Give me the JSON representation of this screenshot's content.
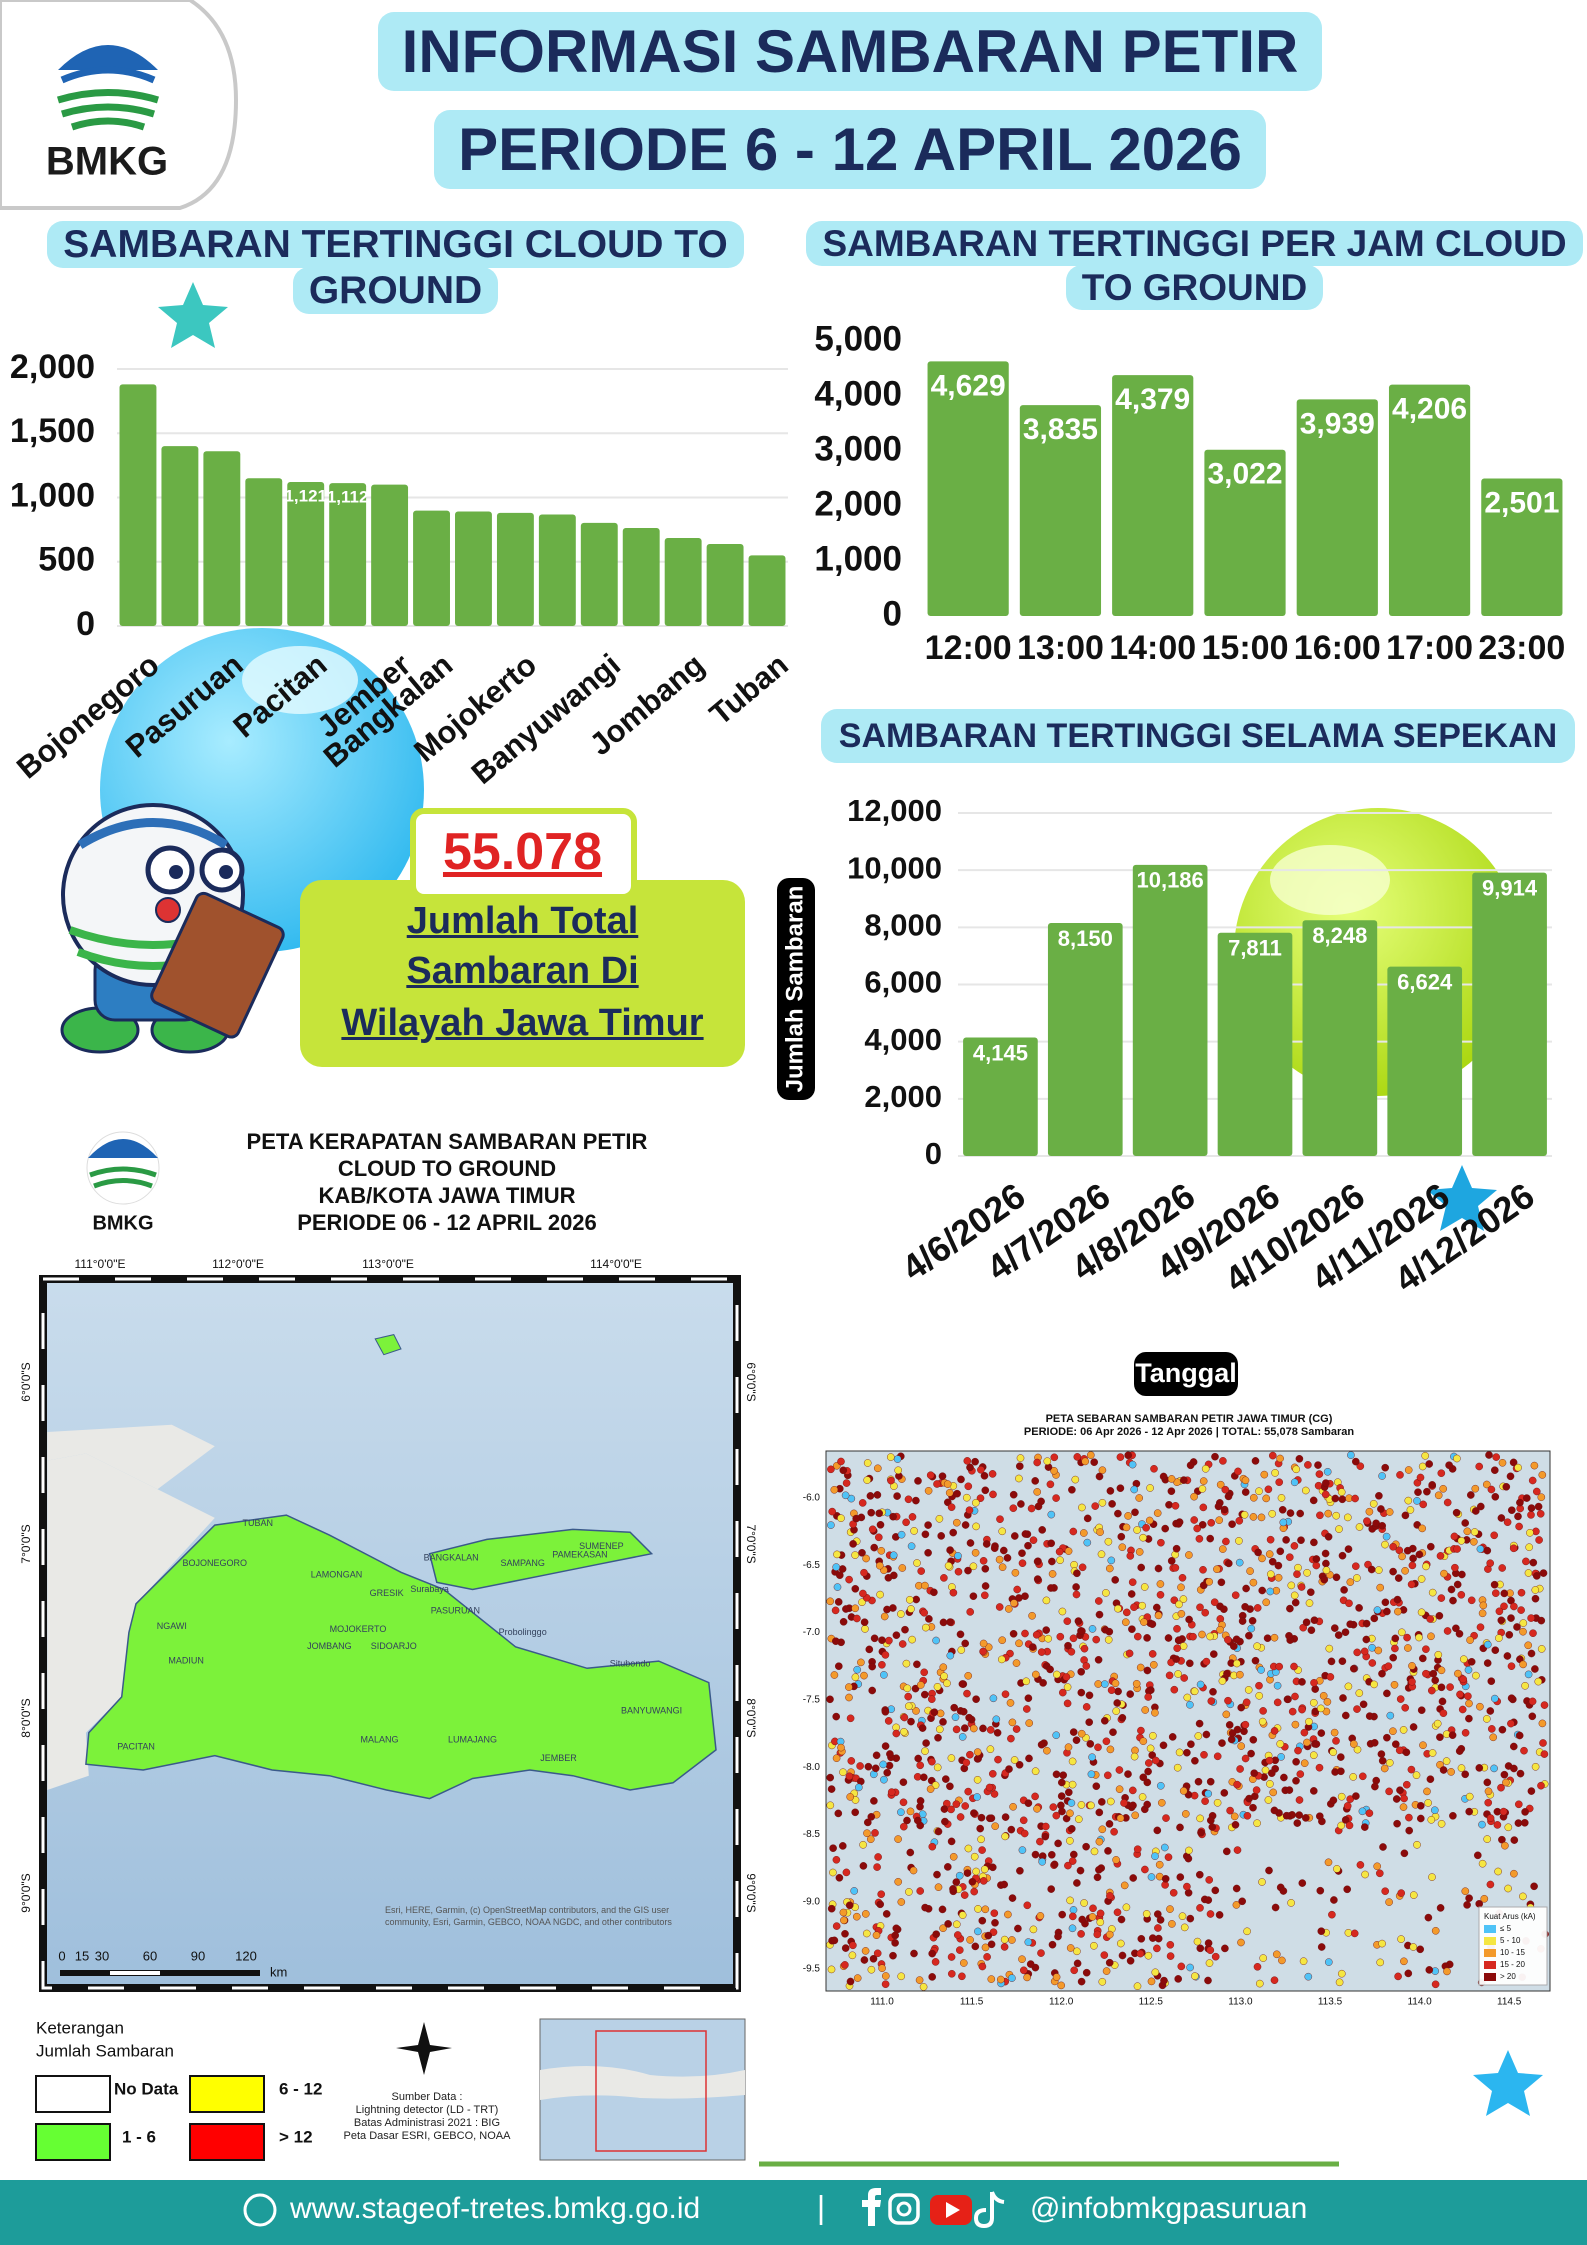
{
  "header": {
    "logo_text": "BMKG",
    "title_line1": "INFORMASI SAMBARAN PETIR",
    "title_line2": "PERIODE 6 - 12 APRIL 2026"
  },
  "chart_data": [
    {
      "type": "bar",
      "title": "SAMBARAN TERTINGGI  CLOUD TO GROUND",
      "categories": [
        "Bojonegoro",
        null,
        "Pasuruan",
        null,
        "Pacitan",
        null,
        "Jember",
        "Bangkalan",
        null,
        "Mojokerto",
        null,
        "Banyuwangi",
        null,
        "Jombang",
        null,
        "Tuban"
      ],
      "values": [
        1880,
        1400,
        1360,
        1150,
        1121,
        1112,
        1100,
        898,
        891,
        880,
        868,
        803,
        763,
        685,
        638,
        550
      ],
      "value_labels": [
        null,
        null,
        null,
        null,
        "1,121",
        "1,112",
        null,
        null,
        null,
        null,
        null,
        null,
        null,
        null,
        null,
        null
      ],
      "color": "#6aaf45",
      "ylim": [
        0,
        2000
      ],
      "yticks": [
        0,
        500,
        {
          "value": 1000,
          "label": "1,000"
        },
        {
          "value": 1500,
          "label": "1,500"
        },
        {
          "value": 2000,
          "label": "2,000"
        }
      ],
      "grid": true
    },
    {
      "type": "bar",
      "title": "SAMBARAN TERTINGGI PER JAM CLOUD TO GROUND",
      "categories": [
        "12:00",
        "13:00",
        "14:00",
        "15:00",
        "16:00",
        "17:00",
        "23:00"
      ],
      "values": [
        4629,
        3835,
        4379,
        3022,
        3939,
        4206,
        2501
      ],
      "value_labels": [
        "4,629",
        "3,835",
        "4,379",
        "3,022",
        "3,939",
        "4,206",
        "2,501"
      ],
      "color": "#6aaf45",
      "ylim": [
        0,
        5000
      ],
      "yticks": [
        0,
        {
          "value": 1000,
          "label": "1,000"
        },
        {
          "value": 2000,
          "label": "2,000"
        },
        {
          "value": 3000,
          "label": "3,000"
        },
        {
          "value": 4000,
          "label": "4,000"
        },
        {
          "value": 5000,
          "label": "5,000"
        }
      ],
      "grid": false
    },
    {
      "type": "bar",
      "title": "SAMBARAN TERTINGGI SELAMA SEPEKAN",
      "y_label": "Jumlah Sambaran",
      "x_label": "Tanggal",
      "categories": [
        "4/6/2026",
        "4/7/2026",
        "4/8/2026",
        "4/9/2026",
        "4/10/2026",
        "4/11/2026",
        "4/12/2026"
      ],
      "values": [
        4145,
        8150,
        10186,
        7811,
        8248,
        6624,
        9914
      ],
      "value_labels": [
        "4,145",
        "8,150",
        "10,186",
        "7,811",
        "8,248",
        "6,624",
        "9,914"
      ],
      "color": "#6aaf45",
      "ylim": [
        0,
        12000
      ],
      "yticks": [
        0,
        {
          "value": 2000,
          "label": "2,000"
        },
        {
          "value": 4000,
          "label": "4,000"
        },
        {
          "value": 6000,
          "label": "6,000"
        },
        {
          "value": 8000,
          "label": "8,000"
        },
        {
          "value": 10000,
          "label": "10,000"
        },
        {
          "value": 12000,
          "label": "12,000"
        }
      ],
      "grid": true
    }
  ],
  "summary": {
    "total": "55.078",
    "lines": [
      "Jumlah Total",
      "Sambaran Di",
      "Wilayah Jawa Timur"
    ]
  },
  "map_left": {
    "logo_text": "BMKG",
    "title": [
      "PETA KERAPATAN SAMBARAN PETIR",
      "CLOUD TO GROUND",
      "KAB/KOTA JAWA TIMUR",
      "PERIODE 06 - 12  APRIL 2026"
    ],
    "lon_labels": [
      "111°0'0\"E",
      "112°0'0\"E",
      "113°0'0\"E",
      "114°0'0\"E"
    ],
    "lat_labels": [
      "6°0'0\"S",
      "7°0'0\"S",
      "8°0'0\"S",
      "9°0'0\"S"
    ],
    "places": [
      "TUBAN",
      "BOJONEGORO",
      "LAMONGAN",
      "GRESIK",
      "BANGKALAN",
      "SAMPANG",
      "PAMEKASAN",
      "SUMENEP",
      "NGAWI",
      "MADIUN",
      "JOMBANG",
      "MOJOKERTO",
      "SIDOARJO",
      "PASURUAN",
      "Probolinggo",
      "Situbondo",
      "PACITAN",
      "MALANG",
      "LUMAJANG",
      "JEMBER",
      "BANYUWANGI",
      "Surabaya"
    ],
    "scale_labels": [
      "0",
      "15",
      "30",
      "60",
      "90",
      "120",
      "km"
    ],
    "attribution": "Esri, HERE, Garmin, (c) OpenStreetMap contributors, and the GIS user community, Esri, Garmin, GEBCO, NOAA NGDC, and other contributors",
    "legend": {
      "title": [
        "Keterangan",
        "Jumlah Sambaran"
      ],
      "items": [
        {
          "label": "No Data",
          "color": "#ffffff"
        },
        {
          "label": "1 - 6",
          "color": "#66ff33"
        },
        {
          "label": "6 - 12",
          "color": "#ffff00"
        },
        {
          "label": "> 12",
          "color": "#ff0000"
        }
      ]
    },
    "source": [
      "Sumber Data :",
      "Lightning detector (LD - TRT)",
      "Batas Administrasi 2021  : BIG",
      "Peta Dasar ESRI, GEBCO, NOAA"
    ]
  },
  "map_right": {
    "title": "PETA SEBARAN SAMBARAN PETIR JAWA TIMUR (CG)",
    "subtitle": "PERIODE: 06 Apr 2026 - 12 Apr 2026 | TOTAL: 55,078 Sambaran",
    "lat_labels": [
      "-6.0",
      "-6.5",
      "-7.0",
      "-7.5",
      "-8.0",
      "-8.5",
      "-9.0",
      "-9.5"
    ],
    "lon_labels": [
      "111.0",
      "111.5",
      "112.0",
      "112.5",
      "113.0",
      "113.5",
      "114.0",
      "114.5"
    ],
    "legend": {
      "title": "Kuat Arus (kA)",
      "items": [
        {
          "label": "≤ 5",
          "color": "#4fc3f7"
        },
        {
          "label": "5 - 10",
          "color": "#f5e642"
        },
        {
          "label": "10 - 15",
          "color": "#f39a2b"
        },
        {
          "label": "15 - 20",
          "color": "#d6281f"
        },
        {
          "label": "> 20",
          "color": "#8b0a0a"
        }
      ]
    }
  },
  "footer": {
    "website": "www.stageof-tretes.bmkg.go.id",
    "separator": "|",
    "social": "@infobmkgpasuruan"
  }
}
